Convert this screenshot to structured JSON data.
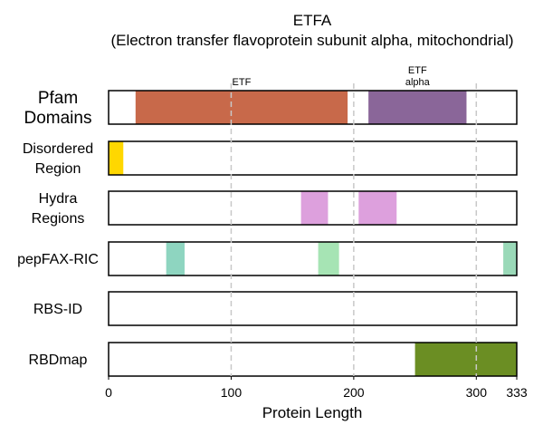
{
  "chart_data": {
    "type": "bar",
    "title": "ETFA",
    "subtitle": "(Electron transfer flavoprotein subunit alpha, mitochondrial)",
    "xlabel": "Protein Length",
    "xlim": [
      0,
      333
    ],
    "xticks": [
      0,
      100,
      200,
      300,
      333
    ],
    "gridlines": [
      100,
      200,
      300
    ],
    "tracks": [
      {
        "lines": [
          "Pfam",
          "Domains"
        ],
        "segments": [
          {
            "start": 22,
            "end": 195,
            "color": "#c8694a",
            "label": [
              "ETF"
            ]
          },
          {
            "start": 212,
            "end": 292,
            "color": "#8a6699",
            "label": [
              "ETF",
              "alpha"
            ]
          }
        ]
      },
      {
        "lines": [
          "Disordered",
          "Region"
        ],
        "segments": [
          {
            "start": 0,
            "end": 12,
            "color": "#ffd700"
          }
        ]
      },
      {
        "lines": [
          "Hydra",
          "Regions"
        ],
        "segments": [
          {
            "start": 157,
            "end": 179,
            "color": "#dda0dd"
          },
          {
            "start": 204,
            "end": 235,
            "color": "#dda0dd"
          }
        ]
      },
      {
        "lines": [
          "pepFAX-RIC"
        ],
        "segments": [
          {
            "start": 47,
            "end": 62,
            "color": "#8ed5c0"
          },
          {
            "start": 171,
            "end": 188,
            "color": "#a6e4b4"
          },
          {
            "start": 322,
            "end": 333,
            "color": "#9ad9b8"
          }
        ]
      },
      {
        "lines": [
          "RBS-ID"
        ],
        "segments": []
      },
      {
        "lines": [
          "RBDmap"
        ],
        "segments": [
          {
            "start": 250,
            "end": 333,
            "color": "#6b8e23"
          }
        ]
      }
    ]
  }
}
